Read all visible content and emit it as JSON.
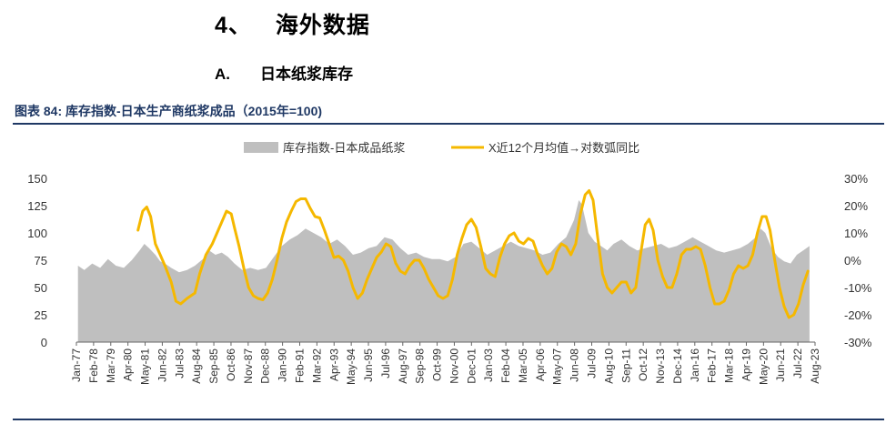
{
  "section": {
    "number": "4、",
    "title": "海外数据"
  },
  "subsection": {
    "number": "A.",
    "title": "日本纸浆库存"
  },
  "figure": {
    "label": "图表 84:",
    "title": "库存指数-日本生产商纸浆成品（2015年=100)"
  },
  "chart_data": {
    "type": "area+line",
    "legend": [
      "库存指数-日本成品纸浆",
      "X近12个月均值→对数弧同比"
    ],
    "legend_placement": "top",
    "colors": {
      "area": "#bfbfbf",
      "line": "#f5b800"
    },
    "grid": false,
    "left_axis": {
      "ticks": [
        0,
        25,
        50,
        75,
        100,
        125,
        150
      ],
      "range": [
        0,
        150
      ]
    },
    "right_axis": {
      "ticks": [
        "30%",
        "20%",
        "10%",
        "0%",
        "-10%",
        "-20%",
        "-30%"
      ],
      "range": [
        -30,
        30
      ]
    },
    "x_tick_labels": [
      "Jan-77",
      "Feb-78",
      "Mar-79",
      "Apr-80",
      "May-81",
      "Jun-82",
      "Jul-83",
      "Aug-84",
      "Sep-85",
      "Oct-86",
      "Nov-87",
      "Dec-88",
      "Jan-90",
      "Feb-91",
      "Mar-92",
      "Apr-93",
      "May-94",
      "Jun-95",
      "Jul-96",
      "Aug-97",
      "Sep-98",
      "Oct-99",
      "Nov-00",
      "Dec-01",
      "Jan-03",
      "Feb-04",
      "Mar-05",
      "Apr-06",
      "May-07",
      "Jun-08",
      "Jul-09",
      "Aug-10",
      "Sep-11",
      "Oct-12",
      "Nov-13",
      "Dec-14",
      "Jan-16",
      "Feb-17",
      "Mar-18",
      "Apr-19",
      "May-20",
      "Jun-21",
      "Jul-22",
      "Aug-23"
    ],
    "x_range": [
      1977.0,
      2023.75
    ],
    "series": [
      {
        "name": "库存指数-日本成品纸浆",
        "axis": "left",
        "kind": "area",
        "points": [
          [
            1977.1,
            70
          ],
          [
            1977.5,
            66
          ],
          [
            1978.0,
            72
          ],
          [
            1978.5,
            68
          ],
          [
            1979.0,
            76
          ],
          [
            1979.5,
            70
          ],
          [
            1980.0,
            68
          ],
          [
            1980.5,
            75
          ],
          [
            1981.0,
            84
          ],
          [
            1981.3,
            90
          ],
          [
            1981.6,
            86
          ],
          [
            1982.0,
            80
          ],
          [
            1982.3,
            74
          ],
          [
            1982.6,
            72
          ],
          [
            1983.0,
            68
          ],
          [
            1983.5,
            64
          ],
          [
            1984.0,
            66
          ],
          [
            1984.5,
            70
          ],
          [
            1985.0,
            76
          ],
          [
            1985.4,
            84
          ],
          [
            1985.8,
            80
          ],
          [
            1986.2,
            82
          ],
          [
            1986.6,
            78
          ],
          [
            1987.0,
            72
          ],
          [
            1987.5,
            66
          ],
          [
            1988.0,
            68
          ],
          [
            1988.5,
            66
          ],
          [
            1989.0,
            68
          ],
          [
            1989.5,
            78
          ],
          [
            1990.0,
            88
          ],
          [
            1990.5,
            94
          ],
          [
            1991.0,
            98
          ],
          [
            1991.5,
            104
          ],
          [
            1992.0,
            100
          ],
          [
            1992.5,
            96
          ],
          [
            1993.0,
            90
          ],
          [
            1993.5,
            94
          ],
          [
            1994.0,
            88
          ],
          [
            1994.5,
            80
          ],
          [
            1995.0,
            82
          ],
          [
            1995.5,
            86
          ],
          [
            1996.0,
            88
          ],
          [
            1996.5,
            96
          ],
          [
            1997.0,
            94
          ],
          [
            1997.5,
            86
          ],
          [
            1998.0,
            80
          ],
          [
            1998.5,
            82
          ],
          [
            1999.0,
            78
          ],
          [
            1999.5,
            76
          ],
          [
            2000.0,
            76
          ],
          [
            2000.5,
            74
          ],
          [
            2001.0,
            78
          ],
          [
            2001.5,
            90
          ],
          [
            2002.0,
            92
          ],
          [
            2002.5,
            86
          ],
          [
            2003.0,
            80
          ],
          [
            2003.5,
            84
          ],
          [
            2004.0,
            88
          ],
          [
            2004.5,
            92
          ],
          [
            2005.0,
            88
          ],
          [
            2005.5,
            86
          ],
          [
            2006.0,
            84
          ],
          [
            2006.5,
            80
          ],
          [
            2007.0,
            82
          ],
          [
            2007.5,
            90
          ],
          [
            2008.0,
            96
          ],
          [
            2008.5,
            112
          ],
          [
            2008.8,
            130
          ],
          [
            2009.0,
            126
          ],
          [
            2009.4,
            100
          ],
          [
            2009.8,
            92
          ],
          [
            2010.2,
            88
          ],
          [
            2010.6,
            84
          ],
          [
            2011.0,
            90
          ],
          [
            2011.5,
            94
          ],
          [
            2012.0,
            88
          ],
          [
            2012.5,
            84
          ],
          [
            2013.0,
            86
          ],
          [
            2013.5,
            88
          ],
          [
            2014.0,
            90
          ],
          [
            2014.5,
            86
          ],
          [
            2015.0,
            88
          ],
          [
            2015.5,
            92
          ],
          [
            2016.0,
            96
          ],
          [
            2016.5,
            92
          ],
          [
            2017.0,
            88
          ],
          [
            2017.5,
            84
          ],
          [
            2018.0,
            82
          ],
          [
            2018.5,
            84
          ],
          [
            2019.0,
            86
          ],
          [
            2019.5,
            90
          ],
          [
            2020.0,
            96
          ],
          [
            2020.3,
            104
          ],
          [
            2020.6,
            100
          ],
          [
            2021.0,
            86
          ],
          [
            2021.4,
            78
          ],
          [
            2021.8,
            74
          ],
          [
            2022.2,
            72
          ],
          [
            2022.6,
            80
          ],
          [
            2023.0,
            84
          ],
          [
            2023.4,
            88
          ]
        ]
      },
      {
        "name": "X近12个月均值→对数弧同比",
        "axis": "right",
        "kind": "line",
        "points": [
          [
            1980.9,
            11
          ],
          [
            1981.2,
            18
          ],
          [
            1981.45,
            19.5
          ],
          [
            1981.7,
            16
          ],
          [
            1982.0,
            6
          ],
          [
            1982.3,
            2
          ],
          [
            1982.6,
            -2
          ],
          [
            1983.0,
            -8
          ],
          [
            1983.3,
            -15
          ],
          [
            1983.6,
            -16
          ],
          [
            1984.0,
            -14
          ],
          [
            1984.5,
            -12
          ],
          [
            1984.8,
            -5
          ],
          [
            1985.2,
            2
          ],
          [
            1985.6,
            6
          ],
          [
            1985.9,
            10
          ],
          [
            1986.2,
            14
          ],
          [
            1986.5,
            18
          ],
          [
            1986.8,
            17
          ],
          [
            1987.0,
            12
          ],
          [
            1987.3,
            5
          ],
          [
            1987.6,
            -3
          ],
          [
            1987.9,
            -10
          ],
          [
            1988.2,
            -13
          ],
          [
            1988.5,
            -14
          ],
          [
            1988.8,
            -14.5
          ],
          [
            1989.1,
            -12
          ],
          [
            1989.4,
            -7
          ],
          [
            1989.7,
            0
          ],
          [
            1990.0,
            8
          ],
          [
            1990.3,
            14
          ],
          [
            1990.6,
            18
          ],
          [
            1990.9,
            21.5
          ],
          [
            1991.2,
            22.5
          ],
          [
            1991.5,
            22.5
          ],
          [
            1991.8,
            19
          ],
          [
            1992.1,
            16
          ],
          [
            1992.4,
            15.5
          ],
          [
            1992.7,
            11
          ],
          [
            1993.0,
            6
          ],
          [
            1993.3,
            1
          ],
          [
            1993.6,
            1.5
          ],
          [
            1993.9,
            0
          ],
          [
            1994.2,
            -4
          ],
          [
            1994.5,
            -10
          ],
          [
            1994.8,
            -14
          ],
          [
            1995.1,
            -12
          ],
          [
            1995.4,
            -7
          ],
          [
            1995.7,
            -3
          ],
          [
            1996.0,
            1
          ],
          [
            1996.3,
            3
          ],
          [
            1996.6,
            6
          ],
          [
            1996.9,
            5
          ],
          [
            1997.2,
            -1
          ],
          [
            1997.5,
            -4
          ],
          [
            1997.8,
            -5
          ],
          [
            1998.1,
            -2
          ],
          [
            1998.4,
            0
          ],
          [
            1998.7,
            0
          ],
          [
            1999.0,
            -3
          ],
          [
            1999.3,
            -7
          ],
          [
            1999.6,
            -10
          ],
          [
            1999.9,
            -13
          ],
          [
            2000.2,
            -14
          ],
          [
            2000.5,
            -13
          ],
          [
            2000.8,
            -7
          ],
          [
            2001.1,
            2
          ],
          [
            2001.4,
            8
          ],
          [
            2001.7,
            13
          ],
          [
            2002.0,
            15
          ],
          [
            2002.3,
            12
          ],
          [
            2002.6,
            5
          ],
          [
            2002.9,
            -3
          ],
          [
            2003.2,
            -5
          ],
          [
            2003.5,
            -6
          ],
          [
            2003.8,
            1
          ],
          [
            2004.1,
            6
          ],
          [
            2004.4,
            9
          ],
          [
            2004.7,
            10
          ],
          [
            2005.0,
            7
          ],
          [
            2005.3,
            6
          ],
          [
            2005.6,
            8
          ],
          [
            2005.9,
            7
          ],
          [
            2006.2,
            2
          ],
          [
            2006.5,
            -2
          ],
          [
            2006.8,
            -5
          ],
          [
            2007.1,
            -3
          ],
          [
            2007.4,
            3
          ],
          [
            2007.7,
            6
          ],
          [
            2008.0,
            5
          ],
          [
            2008.3,
            2
          ],
          [
            2008.6,
            6
          ],
          [
            2008.9,
            17
          ],
          [
            2009.2,
            24
          ],
          [
            2009.45,
            25.5
          ],
          [
            2009.7,
            22
          ],
          [
            2010.0,
            8
          ],
          [
            2010.3,
            -5
          ],
          [
            2010.6,
            -10
          ],
          [
            2010.9,
            -12
          ],
          [
            2011.2,
            -10
          ],
          [
            2011.5,
            -8
          ],
          [
            2011.8,
            -8
          ],
          [
            2012.1,
            -12
          ],
          [
            2012.4,
            -10
          ],
          [
            2012.7,
            2
          ],
          [
            2013.0,
            13
          ],
          [
            2013.25,
            15
          ],
          [
            2013.5,
            11
          ],
          [
            2013.8,
            0
          ],
          [
            2014.1,
            -6
          ],
          [
            2014.4,
            -10
          ],
          [
            2014.7,
            -10
          ],
          [
            2015.0,
            -5
          ],
          [
            2015.3,
            2
          ],
          [
            2015.6,
            4
          ],
          [
            2015.9,
            4
          ],
          [
            2016.2,
            5
          ],
          [
            2016.5,
            4
          ],
          [
            2016.8,
            -2
          ],
          [
            2017.1,
            -10
          ],
          [
            2017.4,
            -16
          ],
          [
            2017.7,
            -16
          ],
          [
            2018.0,
            -15
          ],
          [
            2018.3,
            -11
          ],
          [
            2018.6,
            -5
          ],
          [
            2018.9,
            -2
          ],
          [
            2019.2,
            -3
          ],
          [
            2019.5,
            -2
          ],
          [
            2019.8,
            2
          ],
          [
            2020.1,
            10
          ],
          [
            2020.4,
            16
          ],
          [
            2020.65,
            16
          ],
          [
            2020.9,
            11
          ],
          [
            2021.2,
            0
          ],
          [
            2021.5,
            -10
          ],
          [
            2021.8,
            -17
          ],
          [
            2022.1,
            -21
          ],
          [
            2022.4,
            -20
          ],
          [
            2022.7,
            -16
          ],
          [
            2023.0,
            -9
          ],
          [
            2023.3,
            -4
          ]
        ]
      }
    ]
  }
}
